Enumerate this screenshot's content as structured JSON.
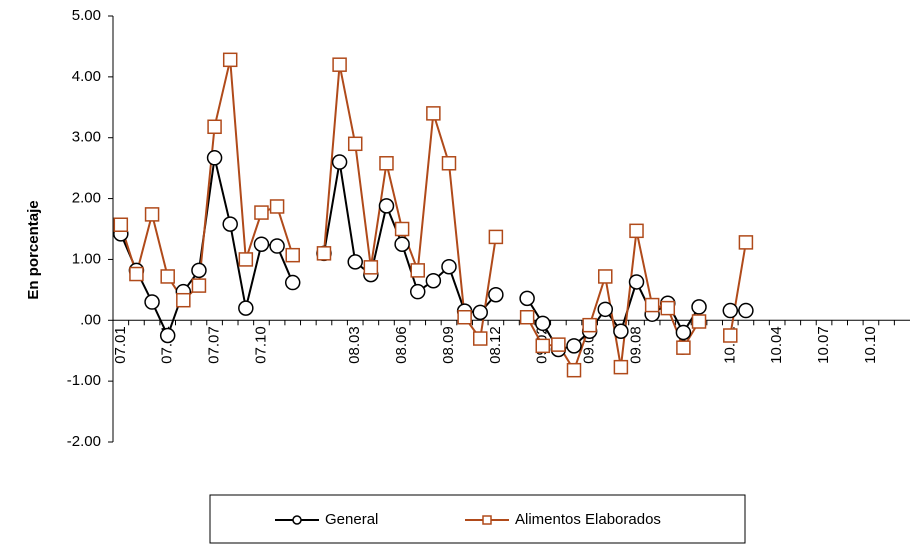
{
  "chart_data": {
    "type": "line",
    "y_label": "En porcentaje",
    "categories": [
      "07.01",
      null,
      null,
      "07.04",
      null,
      null,
      "07.07",
      null,
      null,
      "07.10",
      null,
      null,
      null,
      null,
      null,
      "08.03",
      null,
      null,
      "08.06",
      null,
      null,
      "08.09",
      null,
      null,
      "08.12",
      null,
      null,
      "09.02",
      null,
      null,
      "09.05",
      null,
      null,
      "09.08",
      null,
      null,
      "09.1",
      null,
      null,
      "10.01",
      null,
      null,
      "10.04",
      null,
      null,
      "10.07",
      null,
      null,
      "10.10",
      null,
      null
    ],
    "series": [
      {
        "name": "General",
        "color": "#000000",
        "marker": "circle",
        "values": [
          1.42,
          0.82,
          0.3,
          -0.25,
          0.47,
          0.82,
          2.67,
          1.58,
          0.2,
          1.25,
          1.22,
          0.62,
          null,
          1.1,
          2.6,
          0.96,
          0.75,
          1.88,
          1.25,
          0.47,
          0.65,
          0.88,
          0.15,
          0.13,
          0.42,
          null,
          0.36,
          -0.05,
          -0.48,
          -0.42,
          -0.18,
          0.18,
          -0.18,
          0.63,
          0.1,
          0.28,
          -0.2,
          0.22,
          null,
          0.16,
          0.16,
          null,
          null,
          null,
          null,
          null,
          null,
          null,
          null,
          null,
          null
        ]
      },
      {
        "name": "Alimentos Elaborados",
        "color": "#b04a1a",
        "marker": "square",
        "values": [
          1.57,
          0.76,
          1.74,
          0.72,
          0.33,
          0.57,
          3.18,
          4.28,
          1.0,
          1.77,
          1.87,
          1.07,
          null,
          1.1,
          4.2,
          2.9,
          0.87,
          2.58,
          1.5,
          0.82,
          3.4,
          2.58,
          0.05,
          -0.3,
          1.37,
          null,
          0.05,
          -0.42,
          -0.4,
          -0.82,
          -0.08,
          0.72,
          -0.77,
          1.47,
          0.25,
          0.2,
          -0.45,
          -0.02,
          null,
          -0.25,
          1.28,
          null,
          null,
          null,
          null,
          null,
          null,
          null,
          null,
          null,
          null
        ]
      }
    ],
    "ylim": [
      -2,
      5
    ],
    "yticks": [
      {
        "value": 5,
        "label": "5.00"
      },
      {
        "value": 4,
        "label": "4.00"
      },
      {
        "value": 3,
        "label": "3.00"
      },
      {
        "value": 2,
        "label": "2.00"
      },
      {
        "value": 1,
        "label": "1.00"
      },
      {
        "value": 0,
        "label": ".00"
      },
      {
        "value": -1,
        "label": "-1.00"
      },
      {
        "value": -2,
        "label": "-2.00"
      }
    ],
    "grid": false,
    "legend": "bottom"
  }
}
